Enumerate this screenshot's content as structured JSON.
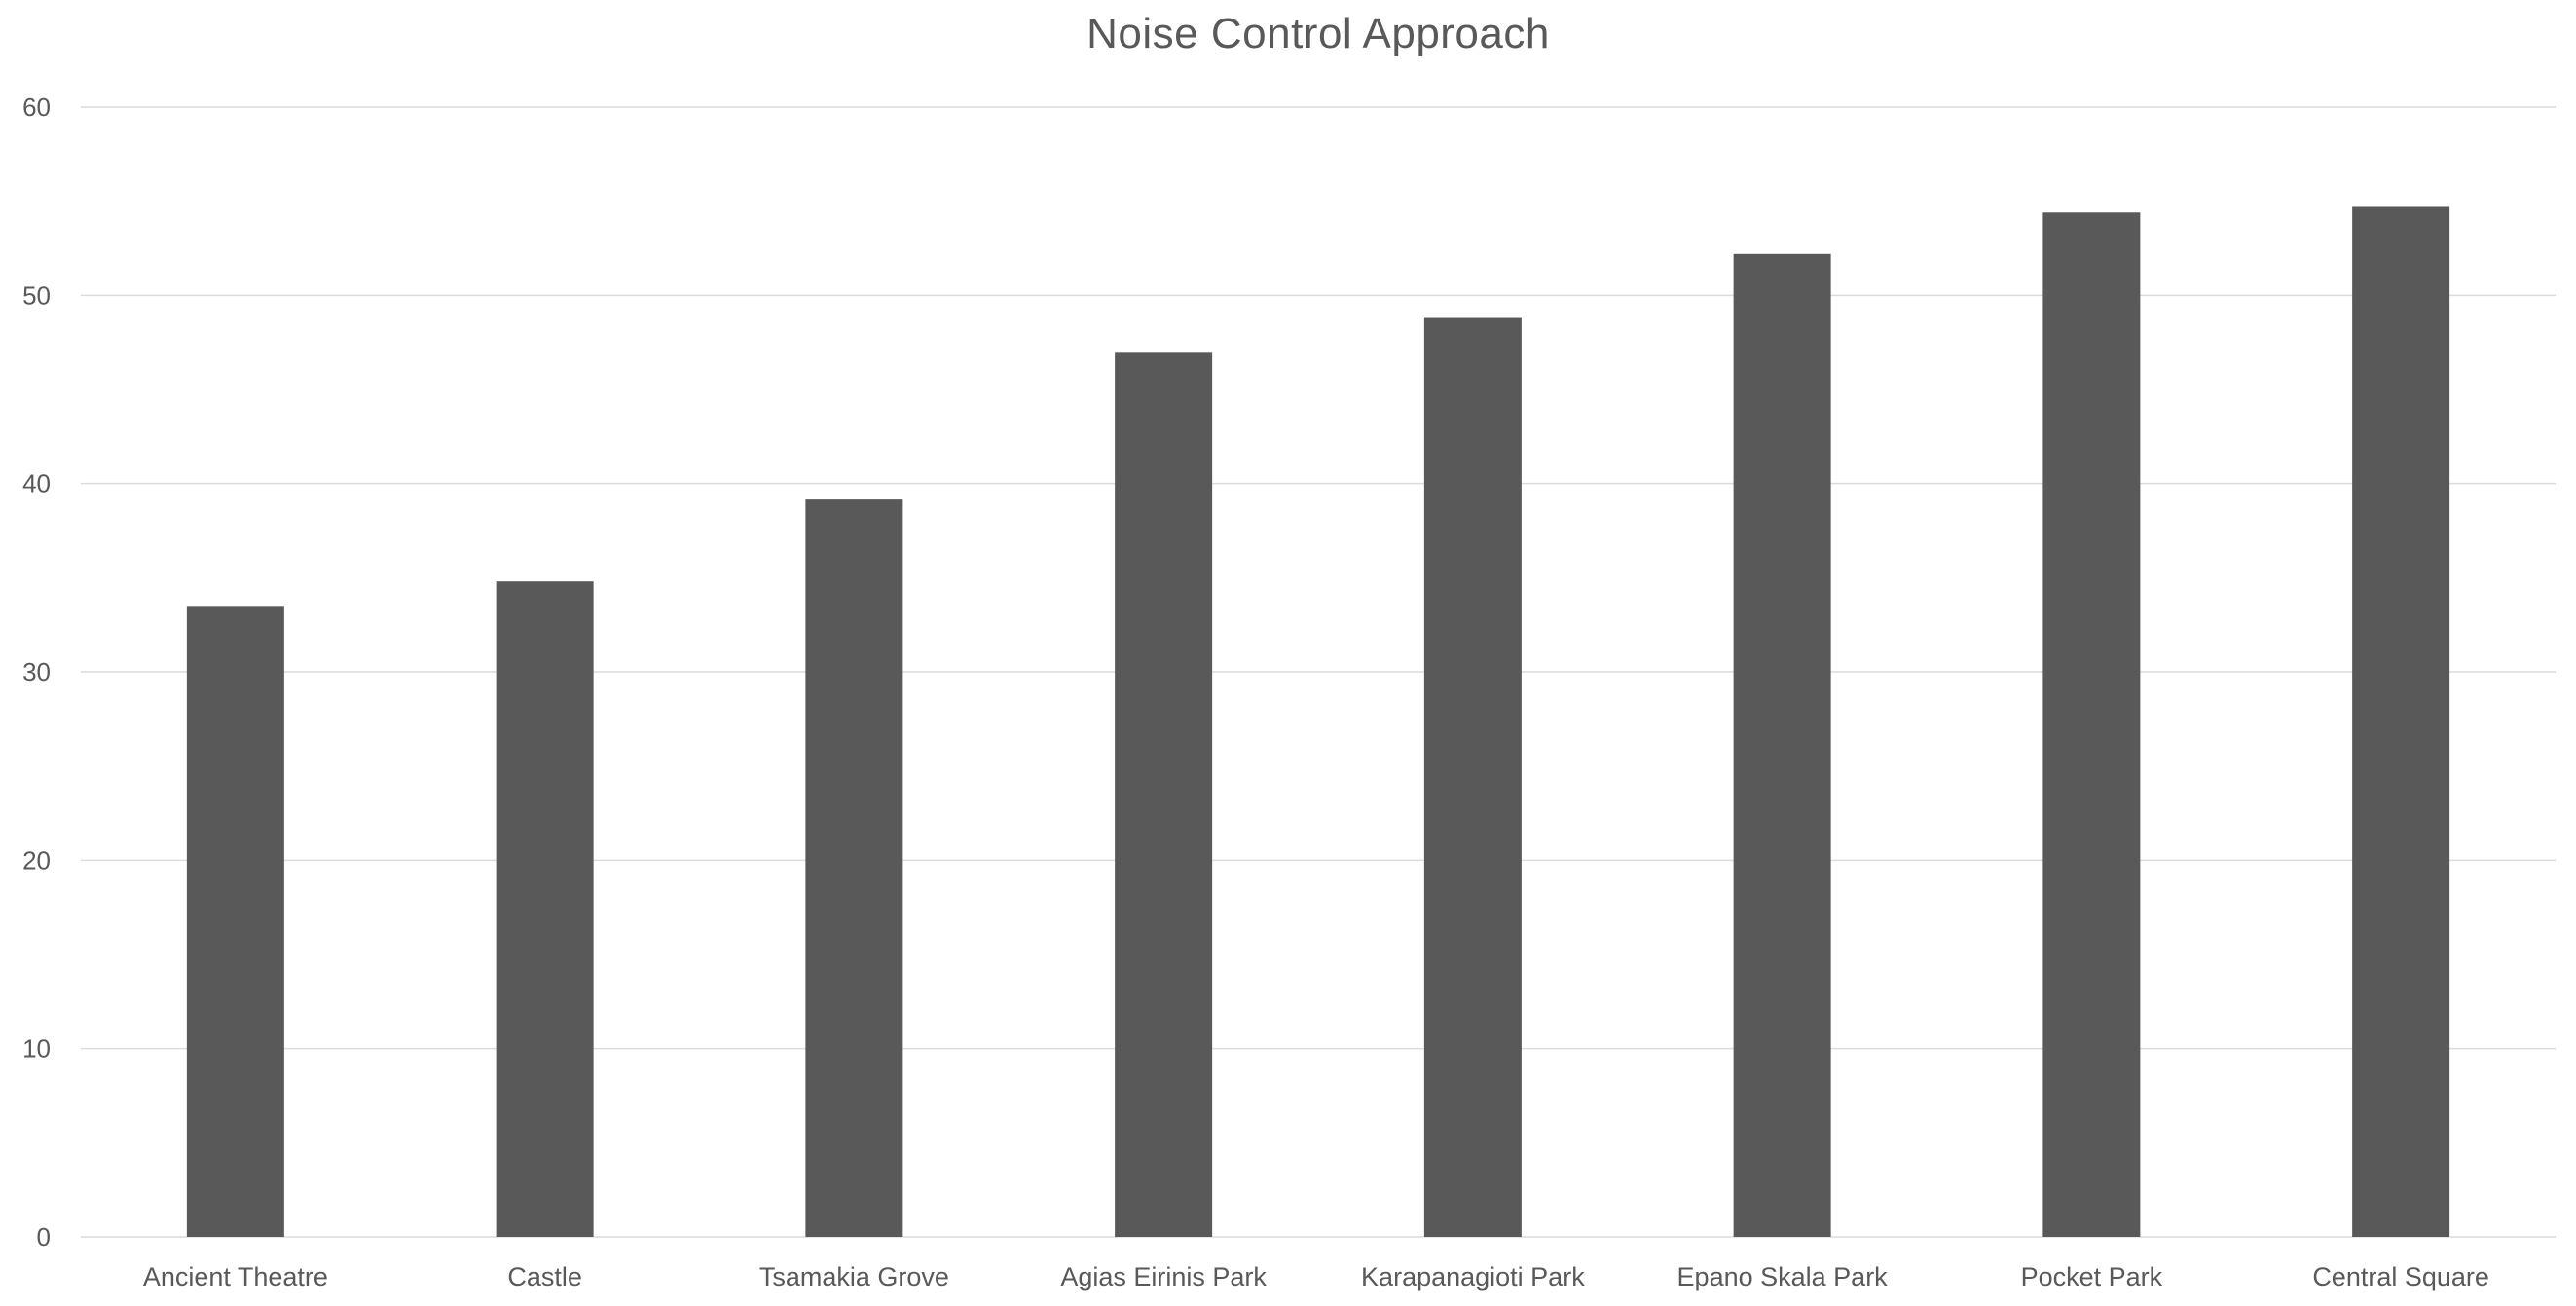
{
  "chart_data": {
    "type": "bar",
    "title": "Noise Control Approach",
    "categories": [
      "Ancient Theatre",
      "Castle",
      "Tsamakia Grove",
      "Agias Eirinis Park",
      "Karapanagioti Park",
      "Epano Skala Park",
      "Pocket Park",
      "Central Square"
    ],
    "values": [
      33.5,
      34.8,
      39.2,
      47.0,
      48.8,
      52.2,
      54.4,
      54.7
    ],
    "xlabel": "",
    "ylabel": "",
    "ylim": [
      0,
      60
    ],
    "yticks": [
      0,
      10,
      20,
      30,
      40,
      50,
      60
    ],
    "grid": true,
    "legend": false,
    "bar_color": "#595959",
    "gridline_color": "#DCDCDC",
    "axis_line_color": "#DCDCDC",
    "text_color": "#595959",
    "background_color": "#FFFFFF"
  }
}
